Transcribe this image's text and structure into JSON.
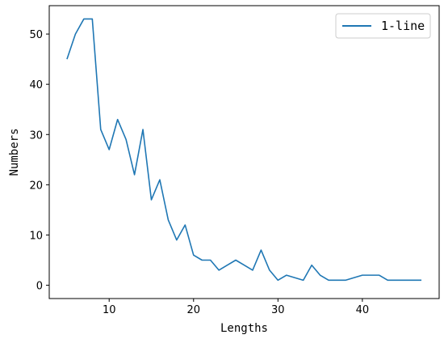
{
  "chart_data": {
    "type": "line",
    "xlabel": "Lengths",
    "ylabel": "Numbers",
    "xlim": [
      2.9,
      49.1
    ],
    "ylim": [
      -2.65,
      55.65
    ],
    "xticks": [
      10,
      20,
      30,
      40
    ],
    "yticks": [
      0,
      10,
      20,
      30,
      40,
      50
    ],
    "grid": false,
    "legend_position": "top-right",
    "series": [
      {
        "name": "1-line",
        "color": "#1f77b4",
        "x": [
          5,
          6,
          7,
          8,
          9,
          10,
          11,
          12,
          13,
          14,
          15,
          16,
          17,
          18,
          19,
          20,
          21,
          22,
          23,
          24,
          25,
          26,
          27,
          28,
          29,
          30,
          31,
          32,
          33,
          34,
          35,
          36,
          37,
          38,
          39,
          40,
          41,
          42,
          43,
          44,
          45,
          46,
          47
        ],
        "values": [
          45,
          50,
          53,
          53,
          31,
          27,
          33,
          29,
          22,
          31,
          17,
          21,
          13,
          9,
          12,
          6,
          5,
          5,
          3,
          4,
          5,
          4,
          3,
          7,
          3,
          1,
          2,
          1.5,
          1,
          4,
          2,
          1,
          1,
          1,
          1.5,
          2,
          2,
          2,
          1,
          1,
          1,
          1,
          1
        ]
      }
    ]
  }
}
